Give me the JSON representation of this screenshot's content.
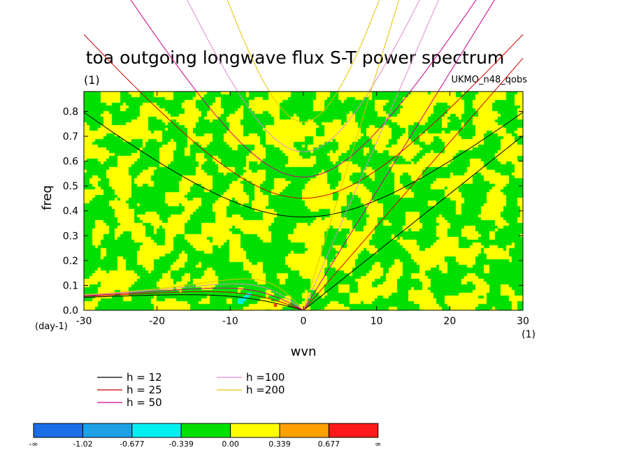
{
  "chart_data": {
    "type": "heatmap",
    "title": "toa outgoing longwave flux S-T power spectrum",
    "subtitle_left": "(1)",
    "subtitle_right": "UKMO_n48_qobs",
    "xlabel": "wvn",
    "ylabel": "freq",
    "x_unit": "(1)",
    "y_unit": "(day-1)",
    "xlim": [
      -30,
      30
    ],
    "ylim": [
      0,
      0.88
    ],
    "x_ticks": [
      -30,
      -20,
      -10,
      0,
      10,
      20,
      30
    ],
    "x_tick_labels": [
      "-30",
      "-20",
      "-10",
      "0",
      "10",
      "20",
      "30"
    ],
    "y_ticks": [
      0.0,
      0.1,
      0.2,
      0.3,
      0.4,
      0.5,
      0.6,
      0.7,
      0.8
    ],
    "y_tick_labels": [
      "0.0",
      "0.1",
      "0.2",
      "0.3",
      "0.4",
      "0.5",
      "0.6",
      "0.7",
      "0.8"
    ],
    "colorbar": {
      "colors": [
        "#1a6ee8",
        "#1ea0e6",
        "#00f0f0",
        "#00e000",
        "#ffff00",
        "#ffa000",
        "#ff1a1a"
      ],
      "labels": [
        "-∞",
        "-1.02",
        "-0.677",
        "-0.339",
        "0.00",
        "0.339",
        "0.677",
        "∞"
      ]
    },
    "dispersion_curves": [
      {
        "name": "h = 12",
        "h": 12,
        "color": "#000000"
      },
      {
        "name": "h = 25",
        "h": 25,
        "color": "#cc0000"
      },
      {
        "name": "h = 50",
        "h": 50,
        "color": "#cc0088"
      },
      {
        "name": "h =100",
        "h": 100,
        "color": "#e08ad0"
      },
      {
        "name": "h =200",
        "h": 200,
        "color": "#e6c000"
      }
    ]
  }
}
